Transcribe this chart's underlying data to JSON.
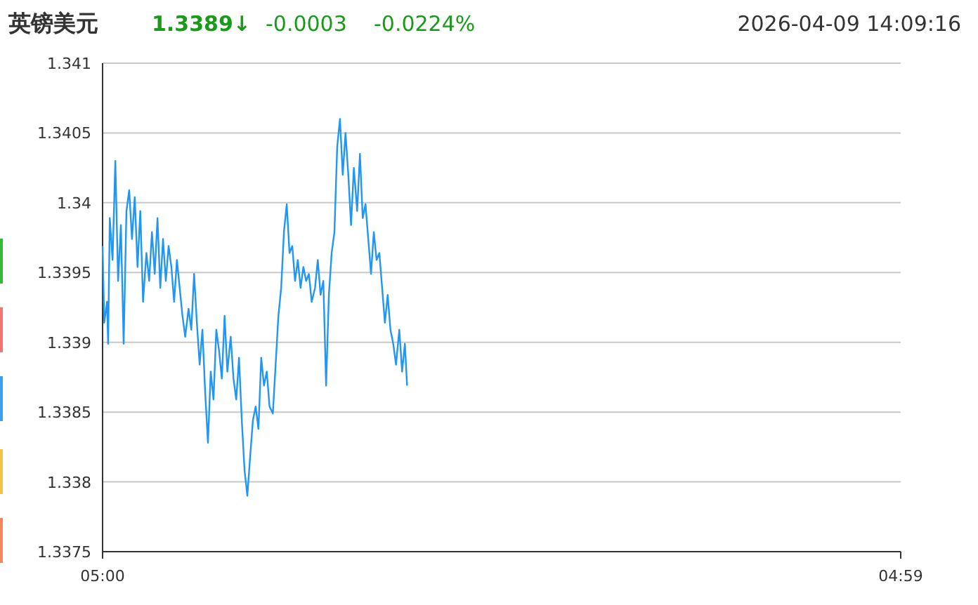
{
  "chart_data": {
    "type": "line",
    "title": "英镑美元",
    "annotations": [
      "1.3389↓",
      "-0.0003",
      "-0.0224%",
      "2026-04-09 14:09:16"
    ],
    "xlim": [
      "2026-04-09T05:00",
      "2026-04-10T04:59"
    ],
    "xticks": [
      {
        "value": "2026-04-09T05:00",
        "label": "05:00"
      },
      {
        "value": "2026-04-10T04:59",
        "label": "04:59"
      }
    ],
    "ylim": [
      1.3375,
      1.341
    ],
    "yticks": [
      1.3375,
      1.338,
      1.3385,
      1.339,
      1.3395,
      1.34,
      1.3405,
      1.341
    ],
    "grid": "y",
    "marker": "none",
    "line_style": "solid",
    "series": [
      {
        "color": "#2196f3",
        "x": [
          "2026-04-09T05:00",
          "2026-04-09T05:03",
          "2026-04-09T05:08",
          "2026-04-09T05:10",
          "2026-04-09T05:13",
          "2026-04-09T05:18",
          "2026-04-09T05:23",
          "2026-04-09T05:28",
          "2026-04-09T05:33",
          "2026-04-09T05:38",
          "2026-04-09T05:43",
          "2026-04-09T05:48",
          "2026-04-09T05:53",
          "2026-04-09T05:58",
          "2026-04-09T06:03",
          "2026-04-09T06:08",
          "2026-04-09T06:13",
          "2026-04-09T06:19",
          "2026-04-09T06:24",
          "2026-04-09T06:29",
          "2026-04-09T06:34",
          "2026-04-09T06:39",
          "2026-04-09T06:44",
          "2026-04-09T06:49",
          "2026-04-09T06:54",
          "2026-04-09T06:59",
          "2026-04-09T07:04",
          "2026-04-09T07:09",
          "2026-04-09T07:14",
          "2026-04-09T07:19",
          "2026-04-09T07:24",
          "2026-04-09T07:29",
          "2026-04-09T07:35",
          "2026-04-09T07:40",
          "2026-04-09T07:45",
          "2026-04-09T07:50",
          "2026-04-09T07:55",
          "2026-04-09T08:00",
          "2026-04-09T08:05",
          "2026-04-09T08:10",
          "2026-04-09T08:15",
          "2026-04-09T08:20",
          "2026-04-09T08:25",
          "2026-04-09T08:30",
          "2026-04-09T08:35",
          "2026-04-09T08:40",
          "2026-04-09T08:45",
          "2026-04-09T08:51",
          "2026-04-09T08:56",
          "2026-04-09T09:01",
          "2026-04-09T09:06",
          "2026-04-09T09:11",
          "2026-04-09T09:16",
          "2026-04-09T09:21",
          "2026-04-09T09:26",
          "2026-04-09T09:31",
          "2026-04-09T09:36",
          "2026-04-09T09:41",
          "2026-04-09T09:46",
          "2026-04-09T09:51",
          "2026-04-09T09:56",
          "2026-04-09T10:01",
          "2026-04-09T10:07",
          "2026-04-09T10:12",
          "2026-04-09T10:17",
          "2026-04-09T10:22",
          "2026-04-09T10:27",
          "2026-04-09T10:32",
          "2026-04-09T10:37",
          "2026-04-09T10:42",
          "2026-04-09T10:47",
          "2026-04-09T10:52",
          "2026-04-09T10:57",
          "2026-04-09T11:02",
          "2026-04-09T11:07",
          "2026-04-09T11:12",
          "2026-04-09T11:17",
          "2026-04-09T11:23",
          "2026-04-09T11:28",
          "2026-04-09T11:33",
          "2026-04-09T11:38",
          "2026-04-09T11:43",
          "2026-04-09T11:48",
          "2026-04-09T11:53",
          "2026-04-09T11:58",
          "2026-04-09T12:03",
          "2026-04-09T12:08",
          "2026-04-09T12:13",
          "2026-04-09T12:18",
          "2026-04-09T12:23",
          "2026-04-09T12:28",
          "2026-04-09T12:33",
          "2026-04-09T12:39",
          "2026-04-09T12:44",
          "2026-04-09T12:49",
          "2026-04-09T12:54",
          "2026-04-09T12:59",
          "2026-04-09T13:04",
          "2026-04-09T13:09",
          "2026-04-09T13:14",
          "2026-04-09T13:19",
          "2026-04-09T13:24",
          "2026-04-09T13:29",
          "2026-04-09T13:34",
          "2026-04-09T13:39",
          "2026-04-09T13:44",
          "2026-04-09T13:49",
          "2026-04-09T13:55",
          "2026-04-09T14:00",
          "2026-04-09T14:05",
          "2026-04-09T14:09"
        ],
        "values": [
          1.33969,
          1.33914,
          1.33929,
          1.33899,
          1.33989,
          1.33959,
          1.3403,
          1.33944,
          1.33984,
          1.33899,
          1.33994,
          1.34009,
          1.33974,
          1.34004,
          1.33954,
          1.33994,
          1.33929,
          1.33964,
          1.33944,
          1.33979,
          1.33949,
          1.33989,
          1.33939,
          1.33974,
          1.33944,
          1.33969,
          1.33954,
          1.33929,
          1.33959,
          1.33939,
          1.33919,
          1.33904,
          1.33924,
          1.33909,
          1.33949,
          1.33914,
          1.33884,
          1.33909,
          1.33864,
          1.33828,
          1.33879,
          1.33859,
          1.33909,
          1.33894,
          1.33874,
          1.33919,
          1.33879,
          1.33904,
          1.33874,
          1.33859,
          1.33889,
          1.33844,
          1.33808,
          1.3379,
          1.33818,
          1.33844,
          1.33854,
          1.33838,
          1.33889,
          1.33869,
          1.33879,
          1.33854,
          1.33849,
          1.33884,
          1.33919,
          1.33939,
          1.33979,
          1.33999,
          1.33964,
          1.33969,
          1.33944,
          1.33959,
          1.33939,
          1.33954,
          1.33944,
          1.33949,
          1.33929,
          1.33939,
          1.33959,
          1.33934,
          1.33944,
          1.33869,
          1.33934,
          1.33964,
          1.33979,
          1.3404,
          1.3406,
          1.3402,
          1.3405,
          1.3402,
          1.33984,
          1.34025,
          1.33994,
          1.34035,
          1.33989,
          1.33999,
          1.33974,
          1.33949,
          1.33979,
          1.33959,
          1.33964,
          1.33939,
          1.33914,
          1.33934,
          1.33909,
          1.33899,
          1.33884,
          1.33909,
          1.33879,
          1.33899,
          1.33869
        ]
      }
    ]
  }
}
